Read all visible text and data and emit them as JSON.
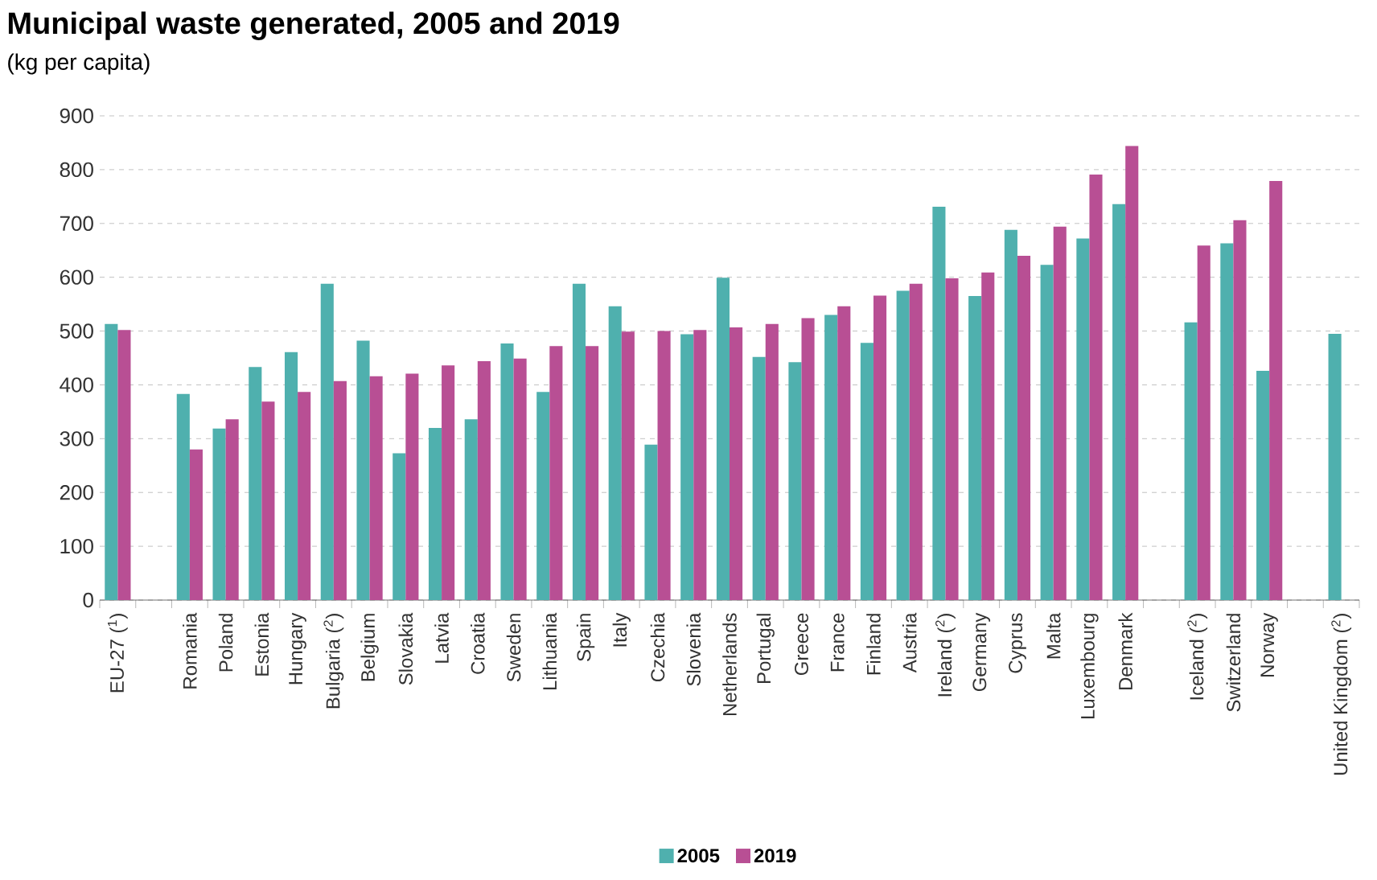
{
  "chart_data": {
    "type": "bar",
    "title": "Municipal waste generated, 2005 and 2019",
    "subtitle": "(kg per capita)",
    "categories": [
      "EU-27 ($^{1}$)",
      null,
      "Romania",
      "Poland",
      "Estonia",
      "Hungary",
      "Bulgaria ($^{2}$)",
      "Belgium",
      "Slovakia",
      "Latvia",
      "Croatia",
      "Sweden",
      "Lithuania",
      "Spain",
      "Italy",
      "Czechia",
      "Slovenia",
      "Netherlands",
      "Portugal",
      "Greece",
      "France",
      "Finland",
      "Austria",
      "Ireland ($^{2}$)",
      "Germany",
      "Cyprus",
      "Malta",
      "Luxembourg",
      "Denmark",
      null,
      "Iceland ($^{2}$)",
      "Switzerland",
      "Norway",
      null,
      "United Kingdom ($^{2}$)"
    ],
    "series": [
      {
        "name": "2005",
        "color": "#4fb0ae",
        "values": [
          513,
          null,
          383,
          319,
          433,
          461,
          588,
          482,
          273,
          320,
          336,
          477,
          387,
          588,
          546,
          289,
          494,
          599,
          452,
          442,
          530,
          478,
          575,
          731,
          565,
          688,
          623,
          672,
          736,
          null,
          516,
          663,
          426,
          null,
          495
        ]
      },
      {
        "name": "2019",
        "color": "#b84f94",
        "values": [
          502,
          null,
          280,
          336,
          369,
          387,
          407,
          416,
          421,
          436,
          444,
          449,
          472,
          472,
          499,
          500,
          502,
          507,
          513,
          524,
          546,
          566,
          588,
          598,
          609,
          640,
          694,
          791,
          844,
          null,
          659,
          706,
          779,
          null,
          null
        ]
      }
    ],
    "ylim": [
      0,
      900
    ],
    "yticks": [
      0,
      100,
      200,
      300,
      400,
      500,
      600,
      700,
      800,
      900
    ],
    "grid": "y",
    "legend": "bottom"
  }
}
